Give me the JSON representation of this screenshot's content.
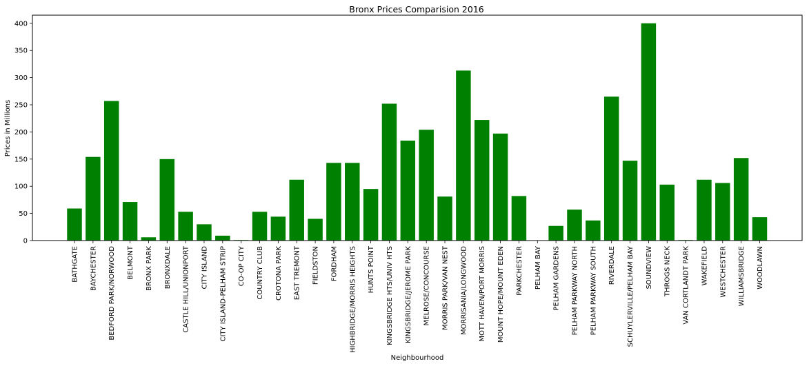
{
  "chart_data": {
    "type": "bar",
    "title": "Bronx Prices Comparision 2016",
    "xlabel": "Neighbourhood",
    "ylabel": "Prices in Millions",
    "ylim": [
      0,
      415
    ],
    "yticks": [
      0,
      50,
      100,
      150,
      200,
      250,
      300,
      350,
      400
    ],
    "ytick_labels": [
      "0",
      "50",
      "100",
      "150",
      "200",
      "250",
      "300",
      "350",
      "400"
    ],
    "grid": false,
    "legend": "none",
    "bar_color": "#008000",
    "categories": [
      "BATHGATE",
      "BAYCHESTER",
      "BEDFORD PARK/NORWOOD",
      "BELMONT",
      "BRONX PARK",
      "BRONXDALE",
      "CASTLE HILL/UNIONPORT",
      "CITY ISLAND",
      "CITY ISLAND-PELHAM STRIP",
      "CO-OP CITY",
      "COUNTRY CLUB",
      "CROTONA PARK",
      "EAST TREMONT",
      "FIELDSTON",
      "FORDHAM",
      "HIGHBRIDGE/MORRIS HEIGHTS",
      "HUNTS POINT",
      "KINGSBRIDGE HTS/UNIV HTS",
      "KINGSBRIDGE/JEROME PARK",
      "MELROSE/CONCOURSE",
      "MORRIS PARK/VAN NEST",
      "MORRISANIA/LONGWOOD",
      "MOTT HAVEN/PORT MORRIS",
      "MOUNT HOPE/MOUNT EDEN",
      "PARKCHESTER",
      "PELHAM BAY",
      "PELHAM GARDENS",
      "PELHAM PARKWAY NORTH",
      "PELHAM PARKWAY SOUTH",
      "RIVERDALE",
      "SCHUYLERVILLE/PELHAM BAY",
      "SOUNDVIEW",
      "THROGS NECK",
      "VAN CORTLANDT PARK",
      "WAKEFIELD",
      "WESTCHESTER",
      "WILLIAMSBRIDGE",
      "WOODLAWN"
    ],
    "values": [
      59,
      154,
      257,
      71,
      6,
      150,
      53,
      30,
      9,
      1,
      53,
      44,
      112,
      40,
      143,
      143,
      95,
      252,
      184,
      204,
      81,
      313,
      222,
      197,
      82,
      0,
      27,
      57,
      37,
      265,
      147,
      400,
      103,
      1,
      112,
      106,
      152,
      43
    ]
  }
}
